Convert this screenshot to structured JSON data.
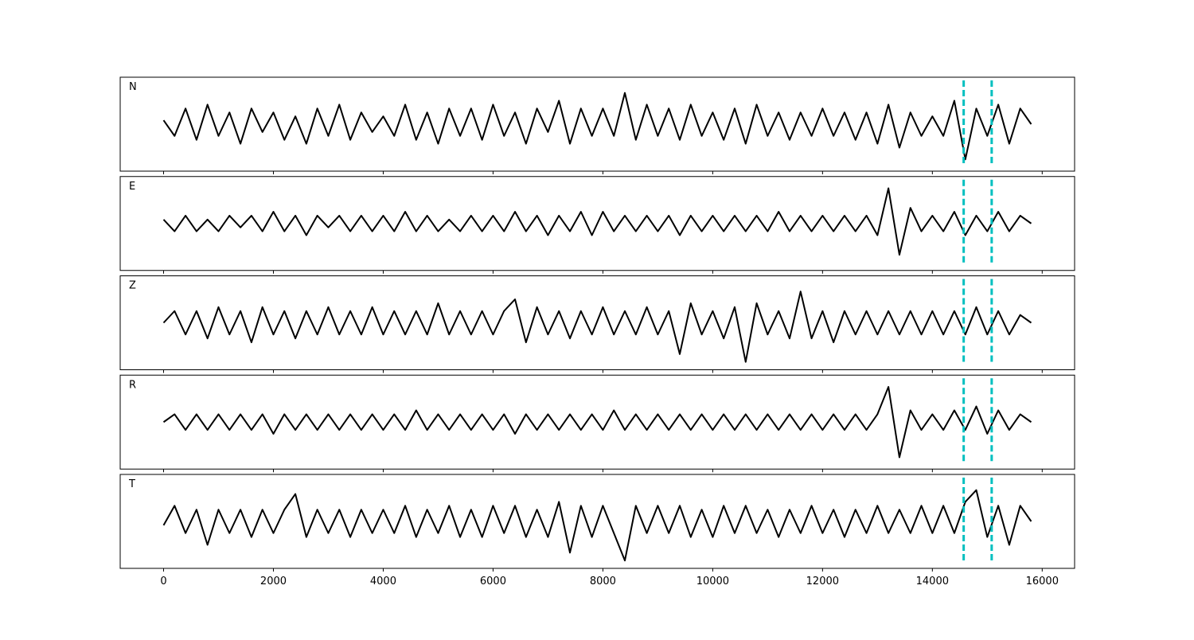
{
  "chart_data": {
    "type": "line",
    "x": [
      0,
      200,
      400,
      600,
      800,
      1000,
      1200,
      1400,
      1600,
      1800,
      2000,
      2200,
      2400,
      2600,
      2800,
      3000,
      3200,
      3400,
      3600,
      3800,
      4000,
      4200,
      4400,
      4600,
      4800,
      5000,
      5200,
      5400,
      5600,
      5800,
      6000,
      6200,
      6400,
      6600,
      6800,
      7000,
      7200,
      7400,
      7600,
      7800,
      8000,
      8200,
      8400,
      8600,
      8800,
      9000,
      9200,
      9400,
      9600,
      9800,
      10000,
      10200,
      10400,
      10600,
      10800,
      11000,
      11200,
      11400,
      11600,
      11800,
      12000,
      12200,
      12400,
      12600,
      12800,
      13000,
      13200,
      13400,
      13600,
      13800,
      14000,
      14200,
      14400,
      14600,
      14800,
      15000,
      15200,
      15400,
      15600,
      15800
    ],
    "series": [
      {
        "name": "N",
        "color": "#000000",
        "values": [
          0.1,
          -0.3,
          0.4,
          -0.4,
          0.5,
          -0.3,
          0.3,
          -0.5,
          0.4,
          -0.2,
          0.3,
          -0.4,
          0.2,
          -0.5,
          0.4,
          -0.3,
          0.5,
          -0.4,
          0.3,
          -0.2,
          0.2,
          -0.3,
          0.5,
          -0.4,
          0.3,
          -0.5,
          0.4,
          -0.3,
          0.4,
          -0.4,
          0.5,
          -0.3,
          0.3,
          -0.5,
          0.4,
          -0.2,
          0.6,
          -0.5,
          0.4,
          -0.3,
          0.4,
          -0.3,
          0.8,
          -0.4,
          0.5,
          -0.3,
          0.4,
          -0.4,
          0.5,
          -0.3,
          0.3,
          -0.4,
          0.4,
          -0.5,
          0.5,
          -0.3,
          0.3,
          -0.4,
          0.3,
          -0.3,
          0.4,
          -0.3,
          0.3,
          -0.4,
          0.3,
          -0.5,
          0.5,
          -0.6,
          0.3,
          -0.3,
          0.2,
          -0.3,
          0.6,
          -0.9,
          0.4,
          -0.3,
          0.5,
          -0.5,
          0.4,
          0.0
        ]
      },
      {
        "name": "E",
        "color": "#000000",
        "values": [
          0.1,
          -0.2,
          0.2,
          -0.2,
          0.1,
          -0.2,
          0.2,
          -0.1,
          0.2,
          -0.2,
          0.3,
          -0.2,
          0.2,
          -0.3,
          0.2,
          -0.1,
          0.2,
          -0.2,
          0.2,
          -0.2,
          0.2,
          -0.2,
          0.3,
          -0.2,
          0.2,
          -0.2,
          0.1,
          -0.2,
          0.2,
          -0.2,
          0.2,
          -0.2,
          0.3,
          -0.2,
          0.2,
          -0.3,
          0.2,
          -0.2,
          0.3,
          -0.3,
          0.3,
          -0.2,
          0.2,
          -0.2,
          0.2,
          -0.2,
          0.2,
          -0.3,
          0.2,
          -0.2,
          0.2,
          -0.2,
          0.2,
          -0.2,
          0.2,
          -0.2,
          0.3,
          -0.2,
          0.2,
          -0.2,
          0.2,
          -0.2,
          0.2,
          -0.2,
          0.2,
          -0.3,
          0.9,
          -0.8,
          0.4,
          -0.2,
          0.2,
          -0.2,
          0.3,
          -0.3,
          0.2,
          -0.2,
          0.3,
          -0.2,
          0.2,
          0.0
        ]
      },
      {
        "name": "Z",
        "color": "#000000",
        "values": [
          0.0,
          0.3,
          -0.3,
          0.3,
          -0.4,
          0.4,
          -0.3,
          0.3,
          -0.5,
          0.4,
          -0.3,
          0.3,
          -0.4,
          0.3,
          -0.3,
          0.4,
          -0.3,
          0.3,
          -0.3,
          0.4,
          -0.3,
          0.3,
          -0.3,
          0.3,
          -0.3,
          0.5,
          -0.3,
          0.3,
          -0.3,
          0.3,
          -0.3,
          0.3,
          0.6,
          -0.5,
          0.4,
          -0.3,
          0.3,
          -0.4,
          0.3,
          -0.3,
          0.4,
          -0.3,
          0.3,
          -0.3,
          0.4,
          -0.3,
          0.3,
          -0.8,
          0.5,
          -0.3,
          0.3,
          -0.4,
          0.4,
          -1.0,
          0.5,
          -0.3,
          0.3,
          -0.4,
          0.8,
          -0.4,
          0.3,
          -0.5,
          0.3,
          -0.3,
          0.3,
          -0.3,
          0.3,
          -0.3,
          0.3,
          -0.3,
          0.3,
          -0.3,
          0.3,
          -0.3,
          0.4,
          -0.3,
          0.3,
          -0.3,
          0.2,
          0.0
        ]
      },
      {
        "name": "R",
        "color": "#000000",
        "values": [
          0.0,
          0.2,
          -0.2,
          0.2,
          -0.2,
          0.2,
          -0.2,
          0.2,
          -0.2,
          0.2,
          -0.3,
          0.2,
          -0.2,
          0.2,
          -0.2,
          0.2,
          -0.2,
          0.2,
          -0.2,
          0.2,
          -0.2,
          0.2,
          -0.2,
          0.3,
          -0.2,
          0.2,
          -0.2,
          0.2,
          -0.2,
          0.2,
          -0.2,
          0.2,
          -0.3,
          0.2,
          -0.2,
          0.2,
          -0.2,
          0.2,
          -0.2,
          0.2,
          -0.2,
          0.3,
          -0.2,
          0.2,
          -0.2,
          0.2,
          -0.2,
          0.2,
          -0.2,
          0.2,
          -0.2,
          0.2,
          -0.2,
          0.2,
          -0.2,
          0.2,
          -0.2,
          0.2,
          -0.2,
          0.2,
          -0.2,
          0.2,
          -0.2,
          0.2,
          -0.2,
          0.2,
          0.9,
          -0.9,
          0.3,
          -0.2,
          0.2,
          -0.2,
          0.3,
          -0.2,
          0.4,
          -0.3,
          0.3,
          -0.2,
          0.2,
          0.0
        ]
      },
      {
        "name": "T",
        "color": "#000000",
        "values": [
          -0.1,
          0.4,
          -0.3,
          0.3,
          -0.6,
          0.3,
          -0.3,
          0.3,
          -0.4,
          0.3,
          -0.3,
          0.3,
          0.7,
          -0.4,
          0.3,
          -0.3,
          0.3,
          -0.4,
          0.3,
          -0.3,
          0.3,
          -0.3,
          0.4,
          -0.4,
          0.3,
          -0.3,
          0.4,
          -0.4,
          0.3,
          -0.4,
          0.4,
          -0.3,
          0.4,
          -0.4,
          0.3,
          -0.4,
          0.5,
          -0.8,
          0.4,
          -0.4,
          0.4,
          -0.3,
          -1.0,
          0.4,
          -0.3,
          0.4,
          -0.3,
          0.4,
          -0.4,
          0.3,
          -0.4,
          0.4,
          -0.3,
          0.4,
          -0.3,
          0.3,
          -0.4,
          0.3,
          -0.3,
          0.4,
          -0.3,
          0.3,
          -0.4,
          0.3,
          -0.3,
          0.4,
          -0.3,
          0.3,
          -0.3,
          0.4,
          -0.3,
          0.4,
          -0.3,
          0.5,
          0.8,
          -0.4,
          0.4,
          -0.6,
          0.4,
          0.0
        ]
      }
    ],
    "vlines": [
      14570,
      15080
    ],
    "vline_color": "#00bfbf",
    "xlim": [
      -790,
      16590
    ],
    "xticks": [
      0,
      2000,
      4000,
      6000,
      8000,
      10000,
      12000,
      14000,
      16000
    ],
    "ylim": [
      -1.2,
      1.2
    ]
  }
}
